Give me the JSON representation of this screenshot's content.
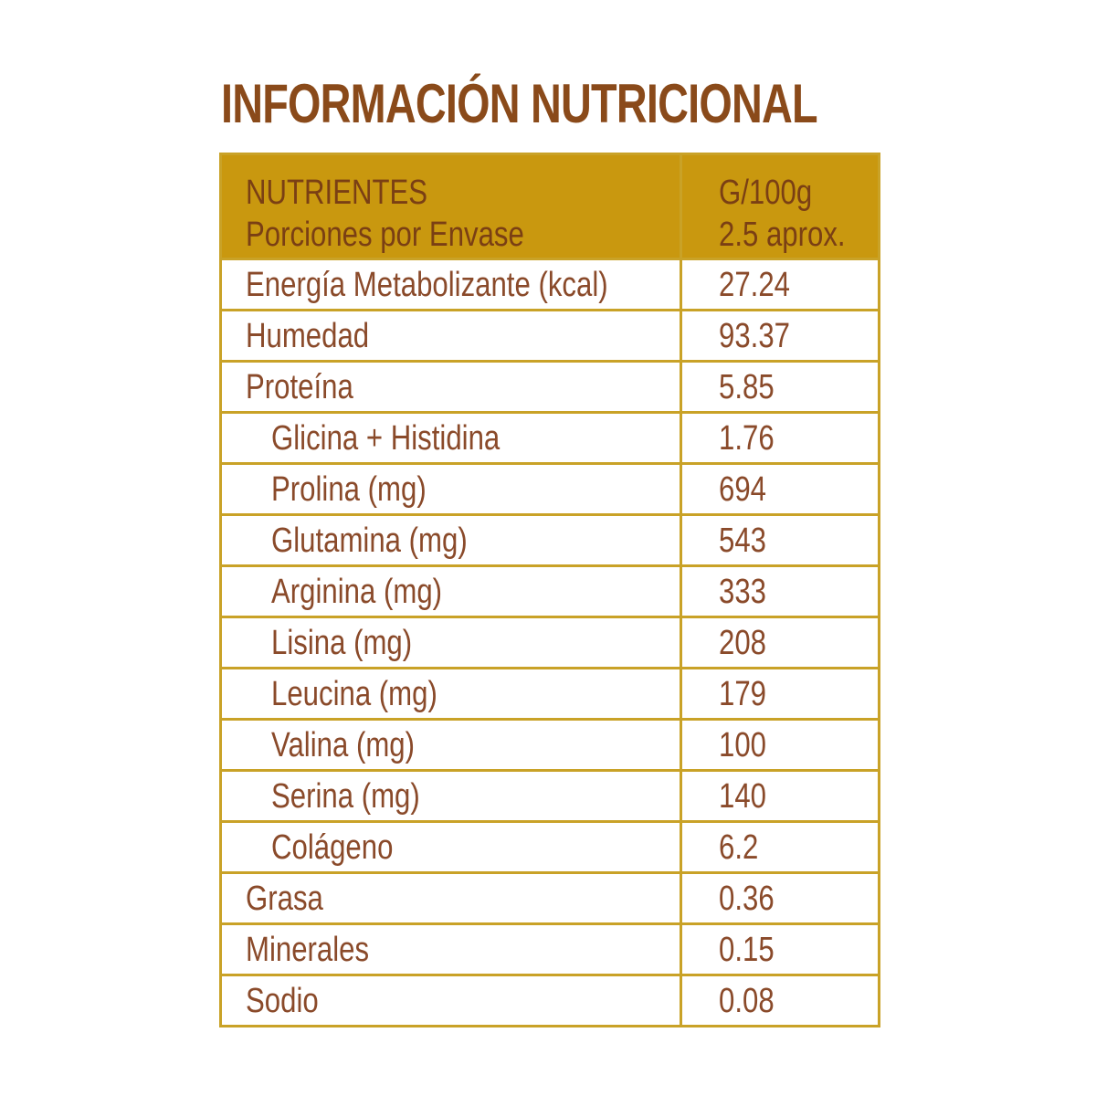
{
  "title": "INFORMACIÓN NUTRICIONAL",
  "colors": {
    "title": "#8a4a1a",
    "header_bg": "#c9980f",
    "border": "#c9a227",
    "text": "#8a4a2a"
  },
  "header": {
    "col1_line1": "NUTRIENTES",
    "col1_line2": "Porciones por Envase",
    "col2_line1": "G/100g",
    "col2_line2": "2.5 aprox."
  },
  "rows": [
    {
      "name": "Energía Metabolizante (kcal)",
      "value": "27.24"
    },
    {
      "name": "Humedad",
      "value": "93.37"
    },
    {
      "name": "Proteína",
      "value": "5.85"
    },
    {
      "name": "Glicina + Histidina",
      "value": "1.76"
    },
    {
      "name": "Prolina (mg)",
      "value": "694"
    },
    {
      "name": "Glutamina (mg)",
      "value": "543"
    },
    {
      "name": "Arginina (mg)",
      "value": "333"
    },
    {
      "name": "Lisina (mg)",
      "value": "208"
    },
    {
      "name": "Leucina (mg)",
      "value": "179"
    },
    {
      "name": "Valina (mg)",
      "value": "100"
    },
    {
      "name": "Serina (mg)",
      "value": "140"
    },
    {
      "name": "Colágeno",
      "value": "6.2"
    },
    {
      "name": "Grasa",
      "value": "0.36"
    },
    {
      "name": "Minerales",
      "value": "0.15"
    },
    {
      "name": "Sodio",
      "value": "0.08"
    }
  ]
}
